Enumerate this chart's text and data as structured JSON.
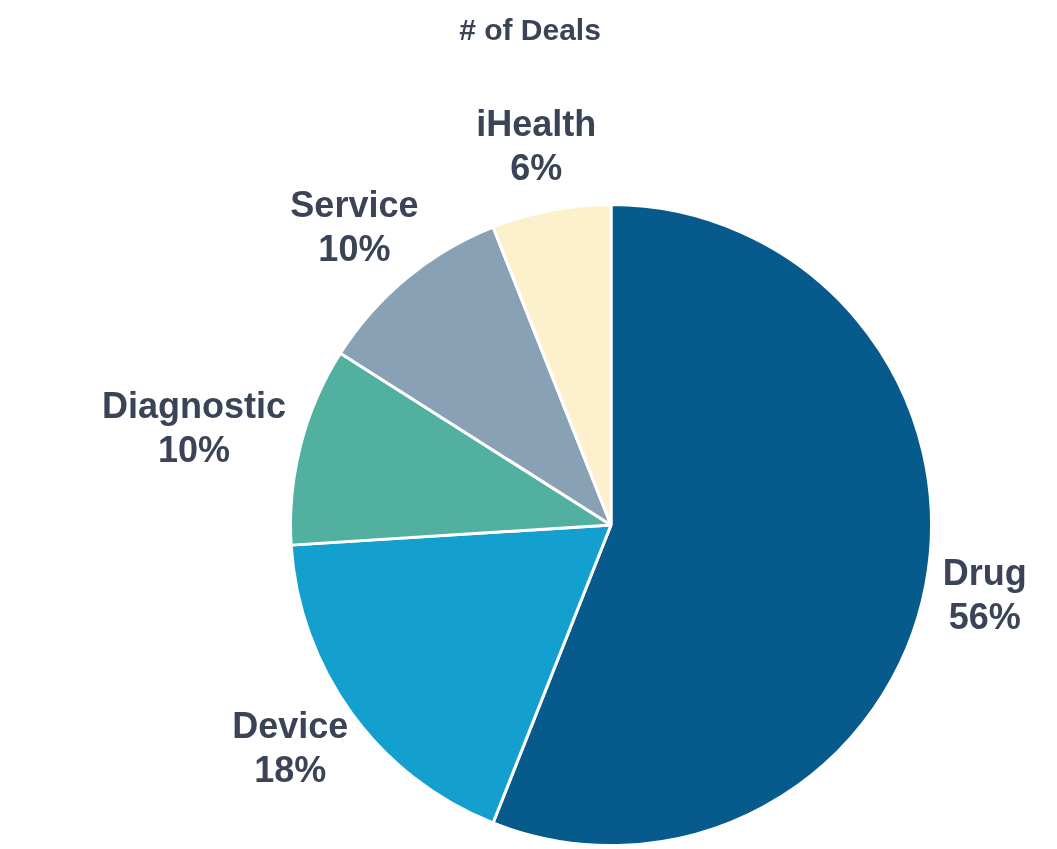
{
  "chart_data": {
    "type": "pie",
    "title": "# of Deals",
    "categories": [
      "Drug",
      "Device",
      "Diagnostic",
      "Service",
      "iHealth"
    ],
    "values": [
      56,
      18,
      10,
      10,
      6
    ],
    "colors": [
      "#065a8c",
      "#14a0cf",
      "#52b0a0",
      "#88a1b4",
      "#fdf0cd"
    ],
    "value_labels": [
      "56%",
      "18%",
      "10%",
      "10%",
      "6%"
    ],
    "legend": false
  }
}
